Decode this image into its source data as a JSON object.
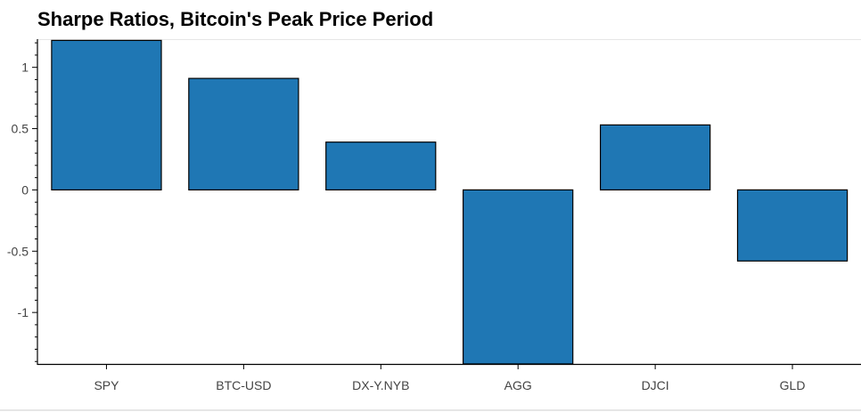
{
  "chart_data": {
    "type": "bar",
    "title": "Sharpe Ratios, Bitcoin's Peak Price Period",
    "xlabel": "",
    "ylabel": "",
    "categories": [
      "SPY",
      "BTC-USD",
      "DX-Y.NYB",
      "AGG",
      "DJCI",
      "GLD"
    ],
    "values": [
      1.22,
      0.91,
      0.39,
      -1.42,
      0.53,
      -0.58
    ],
    "ylim": [
      -1.42,
      1.23
    ],
    "y_ticks": [
      1,
      0.5,
      0,
      -0.5,
      -1
    ],
    "y_tick_labels": [
      "1",
      "0.5",
      "0",
      "-0.5",
      "-1"
    ],
    "grid": false,
    "legend": "none",
    "bar_color": "#1f77b4",
    "bar_edge_color": "#000000"
  }
}
